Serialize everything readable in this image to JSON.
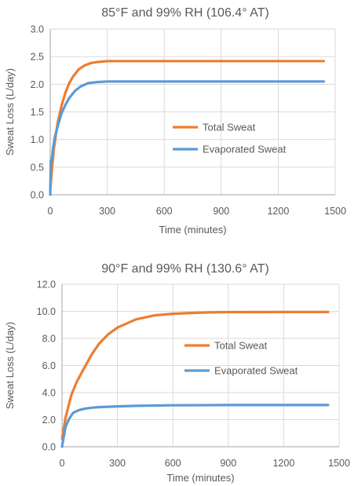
{
  "colors": {
    "total": "#ED7D31",
    "evaporated": "#5B9BD5",
    "grid": "#D9D9D9",
    "axis": "#A6A6A6",
    "text": "#595959"
  },
  "chart_data": [
    {
      "type": "line",
      "title": "85°F and 99% RH (106.4° AT)",
      "xlabel": "Time (minutes)",
      "ylabel": "Sweat Loss (L/day)",
      "xlim": [
        0,
        1500
      ],
      "ylim": [
        0,
        3.0
      ],
      "xticks": [
        0,
        300,
        600,
        900,
        1200,
        1500
      ],
      "xtick_labels": [
        "0",
        "300",
        "600",
        "900",
        "1200",
        "1500"
      ],
      "yticks": [
        0,
        0.5,
        1.0,
        1.5,
        2.0,
        2.5,
        3.0
      ],
      "ytick_labels": [
        "0.0",
        "0.5",
        "1.0",
        "1.5",
        "2.0",
        "2.5",
        "3.0"
      ],
      "grid": true,
      "legend_position": "center-right",
      "series": [
        {
          "name": "Total Sweat",
          "x": [
            0,
            10,
            20,
            30,
            40,
            60,
            80,
            100,
            120,
            150,
            180,
            210,
            240,
            270,
            300,
            400,
            600,
            900,
            1200,
            1440
          ],
          "y": [
            0.1,
            0.5,
            0.85,
            1.1,
            1.32,
            1.62,
            1.85,
            2.02,
            2.14,
            2.27,
            2.34,
            2.38,
            2.4,
            2.41,
            2.42,
            2.42,
            2.42,
            2.42,
            2.42,
            2.42
          ]
        },
        {
          "name": "Evaporated Sweat",
          "x": [
            0,
            3,
            8,
            15,
            25,
            40,
            60,
            80,
            100,
            130,
            160,
            200,
            250,
            300,
            400,
            600,
            900,
            1200,
            1440
          ],
          "y": [
            0.0,
            0.62,
            0.62,
            0.85,
            1.05,
            1.25,
            1.48,
            1.63,
            1.75,
            1.88,
            1.96,
            2.02,
            2.04,
            2.05,
            2.05,
            2.05,
            2.05,
            2.05,
            2.05
          ]
        }
      ]
    },
    {
      "type": "line",
      "title": "90°F and 99% RH (130.6° AT)",
      "xlabel": "Time (minutes)",
      "ylabel": "Sweat Loss (L/day)",
      "xlim": [
        0,
        1500
      ],
      "ylim": [
        0,
        12.0
      ],
      "xticks": [
        0,
        300,
        600,
        900,
        1200,
        1500
      ],
      "xtick_labels": [
        "0",
        "300",
        "600",
        "900",
        "1200",
        "1500"
      ],
      "yticks": [
        0,
        2,
        4,
        6,
        8,
        10,
        12
      ],
      "ytick_labels": [
        "0.0",
        "2.0",
        "4.0",
        "6.0",
        "8.0",
        "10.0",
        "12.0"
      ],
      "grid": true,
      "legend_position": "center-right",
      "series": [
        {
          "name": "Total Sweat",
          "x": [
            0,
            20,
            50,
            80,
            120,
            160,
            200,
            250,
            300,
            400,
            500,
            600,
            700,
            800,
            900,
            1200,
            1440
          ],
          "y": [
            0.6,
            2.2,
            3.8,
            4.8,
            5.8,
            6.8,
            7.6,
            8.3,
            8.8,
            9.4,
            9.7,
            9.82,
            9.88,
            9.92,
            9.94,
            9.95,
            9.95
          ]
        },
        {
          "name": "Evaporated Sweat",
          "x": [
            0,
            10,
            20,
            40,
            60,
            90,
            120,
            160,
            200,
            300,
            400,
            600,
            900,
            1200,
            1440
          ],
          "y": [
            0.0,
            0.8,
            1.5,
            2.1,
            2.5,
            2.7,
            2.8,
            2.88,
            2.93,
            2.98,
            3.02,
            3.06,
            3.08,
            3.08,
            3.08
          ]
        }
      ]
    }
  ]
}
